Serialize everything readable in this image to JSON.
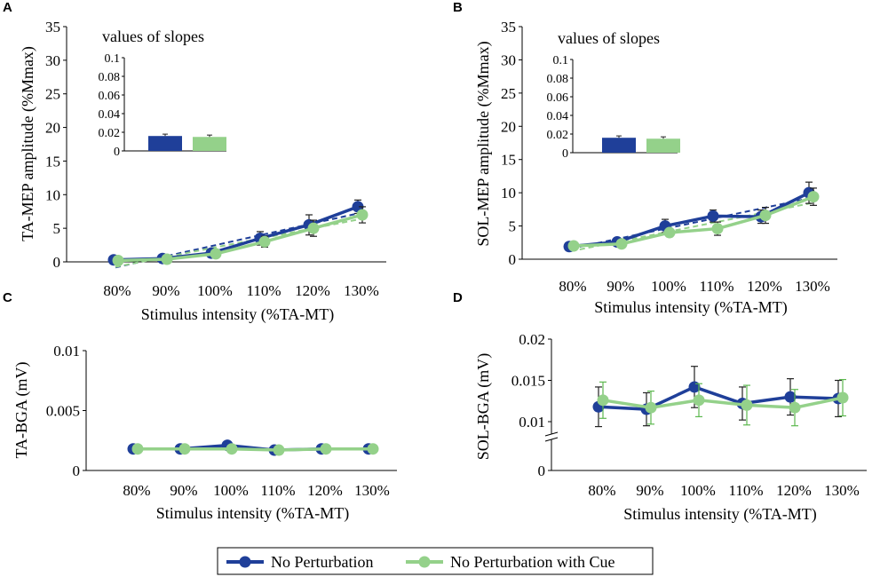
{
  "colors": {
    "series_a": "#1f3f99",
    "series_b": "#94d18a"
  },
  "legend": {
    "items": [
      "No Perturbation",
      "No Perturbation with Cue"
    ]
  },
  "chart_data": [
    {
      "panel": "A",
      "type": "line",
      "categories": [
        "80%",
        "90%",
        "100%",
        "110%",
        "120%",
        "130%"
      ],
      "xlabel": "Stimulus intensity (%TA-MT)",
      "ylabel": "TA-MEP amplitude (%Mmax)",
      "ylim": [
        0,
        35
      ],
      "yticks": [
        0,
        5,
        10,
        15,
        20,
        25,
        30,
        35
      ],
      "series": [
        {
          "name": "No Perturbation",
          "values": [
            0.3,
            0.5,
            1.3,
            3.5,
            5.5,
            8.2
          ],
          "errors": [
            0.2,
            0.3,
            0.5,
            1.0,
            1.5,
            1.0
          ]
        },
        {
          "name": "No Perturbation with Cue",
          "values": [
            0.2,
            0.4,
            1.2,
            3.0,
            5.0,
            7.0
          ],
          "errors": [
            0.2,
            0.3,
            0.4,
            0.8,
            1.2,
            1.2
          ]
        }
      ],
      "trendlines": true,
      "inset": {
        "title": "values of slopes",
        "ylim": [
          0,
          0.1
        ],
        "yticks": [
          "0",
          "0.02",
          "0.04",
          "0.06",
          "0.08",
          "0.1"
        ],
        "values": [
          0.016,
          0.015
        ],
        "errors": [
          0.002,
          0.002
        ]
      }
    },
    {
      "panel": "B",
      "type": "line",
      "categories": [
        "80%",
        "90%",
        "100%",
        "110%",
        "120%",
        "130%"
      ],
      "xlabel": "Stimulus intensity (%TA-MT)",
      "ylabel": "SOL-MEP amplitude (%Mmax)",
      "ylim": [
        0,
        35
      ],
      "yticks": [
        0,
        5,
        10,
        15,
        20,
        25,
        30,
        35
      ],
      "series": [
        {
          "name": "No Perturbation",
          "values": [
            1.9,
            2.6,
            5.0,
            6.5,
            6.4,
            10.0
          ],
          "errors": [
            0.3,
            0.5,
            1.0,
            0.9,
            1.0,
            1.6
          ]
        },
        {
          "name": "No Perturbation with Cue",
          "values": [
            2.0,
            2.3,
            4.0,
            4.6,
            6.6,
            9.4
          ],
          "errors": [
            0.3,
            0.4,
            0.6,
            1.0,
            1.2,
            1.3
          ]
        }
      ],
      "trendlines": true,
      "inset": {
        "title": "values of slopes",
        "ylim": [
          0,
          0.1
        ],
        "yticks": [
          "0",
          "0.02",
          "0.04",
          "0.06",
          "0.08",
          "0.1"
        ],
        "values": [
          0.016,
          0.015
        ],
        "errors": [
          0.002,
          0.002
        ]
      }
    },
    {
      "panel": "C",
      "type": "line",
      "categories": [
        "80%",
        "90%",
        "100%",
        "110%",
        "120%",
        "130%"
      ],
      "xlabel": "Stimulus intensity (%TA-MT)",
      "ylabel": "TA-BGA  (mV)",
      "ylim": [
        0,
        0.01
      ],
      "yticks": [
        "0",
        "0.005",
        "0.01"
      ],
      "series": [
        {
          "name": "No Perturbation",
          "values": [
            0.0018,
            0.0018,
            0.0021,
            0.0017,
            0.0018,
            0.0018
          ],
          "errors": [
            0,
            0,
            0,
            0,
            0,
            0
          ]
        },
        {
          "name": "No Perturbation with Cue",
          "values": [
            0.0018,
            0.0018,
            0.0018,
            0.0017,
            0.0018,
            0.0018
          ],
          "errors": [
            0,
            0,
            0,
            0,
            0,
            0
          ]
        }
      ],
      "trendlines": false
    },
    {
      "panel": "D",
      "type": "line",
      "categories": [
        "80%",
        "90%",
        "100%",
        "110%",
        "120%",
        "130%"
      ],
      "xlabel": "Stimulus intensity (%TA-MT)",
      "ylabel": "SOL-BGA  (mV)",
      "ylim": [
        0,
        0.02
      ],
      "yticks": [
        "0",
        "0.01",
        "0.015",
        "0.02"
      ],
      "axis_break": true,
      "series": [
        {
          "name": "No Perturbation",
          "values": [
            0.0118,
            0.0115,
            0.0142,
            0.0122,
            0.013,
            0.0128
          ],
          "errors": [
            0.0024,
            0.002,
            0.0025,
            0.002,
            0.0022,
            0.0022
          ]
        },
        {
          "name": "No Perturbation with Cue",
          "values": [
            0.0126,
            0.0117,
            0.0126,
            0.012,
            0.0117,
            0.0129
          ],
          "errors": [
            0.0022,
            0.002,
            0.002,
            0.0024,
            0.0022,
            0.0022
          ]
        }
      ],
      "trendlines": false
    }
  ]
}
